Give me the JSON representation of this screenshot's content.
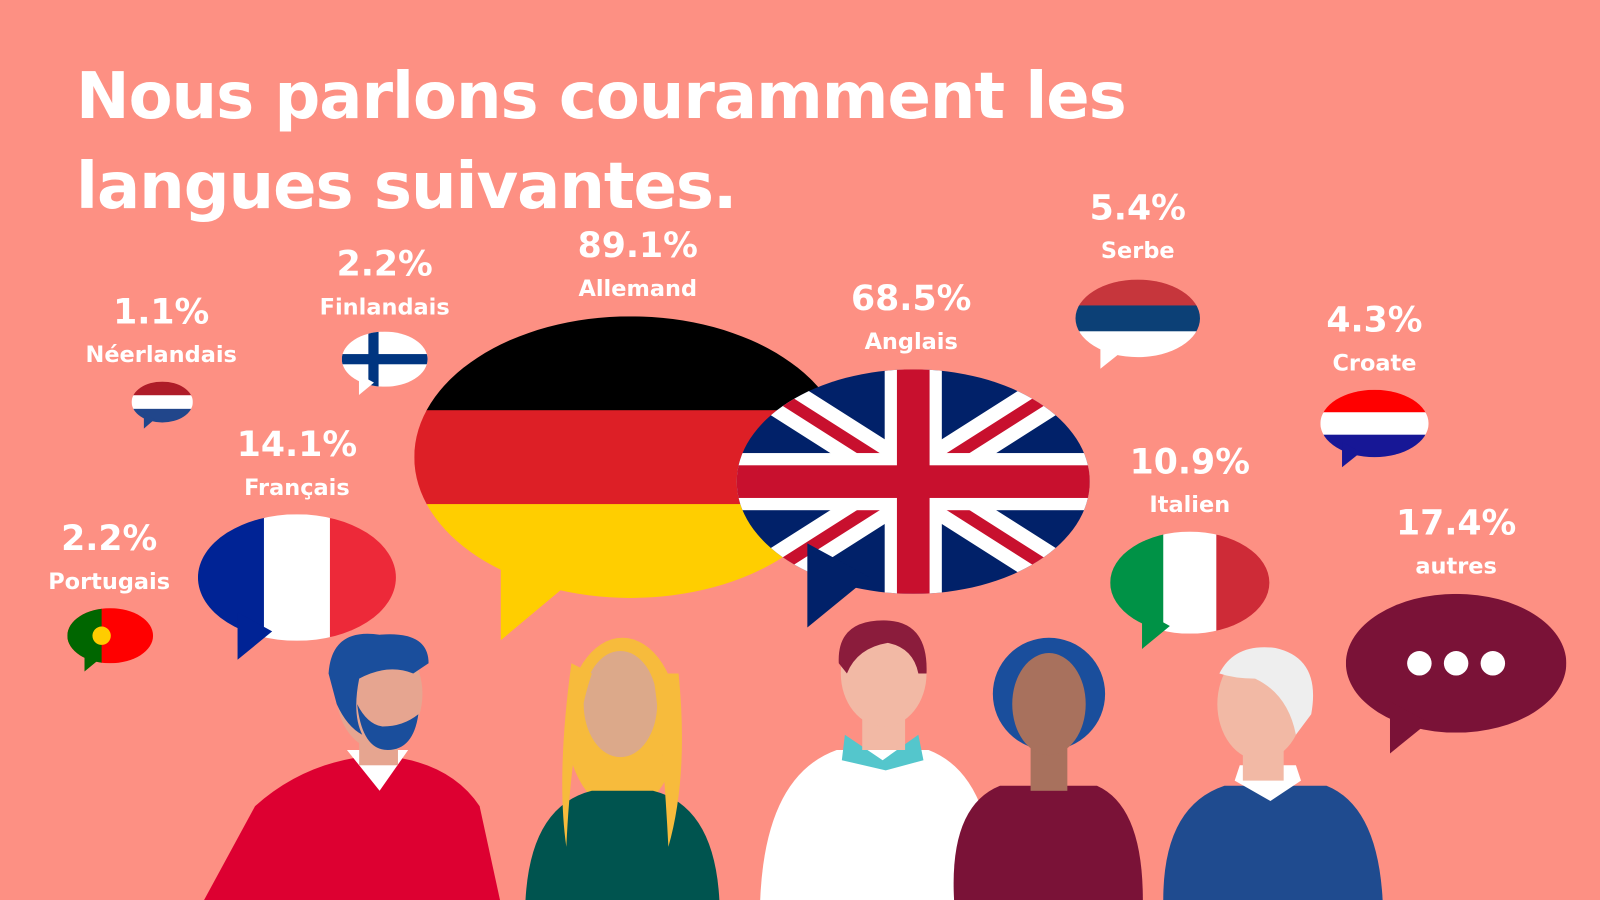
{
  "title": "Nous parlons couramment les langues suivantes.",
  "languages": [
    {
      "percent": "1.1%",
      "name": "Néerlandais"
    },
    {
      "percent": "2.2%",
      "name": "Finlandais"
    },
    {
      "percent": "89.1%",
      "name": "Allemand"
    },
    {
      "percent": "68.5%",
      "name": "Anglais"
    },
    {
      "percent": "5.4%",
      "name": "Serbe"
    },
    {
      "percent": "4.3%",
      "name": "Croate"
    },
    {
      "percent": "14.1%",
      "name": "Français"
    },
    {
      "percent": "2.2%",
      "name": "Portugais"
    },
    {
      "percent": "10.9%",
      "name": "Italien"
    },
    {
      "percent": "17.4%",
      "name": "autres"
    }
  ]
}
